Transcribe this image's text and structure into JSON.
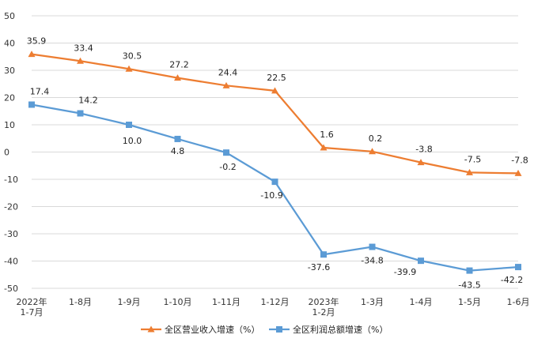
{
  "chart_data": {
    "type": "line",
    "categories": [
      "2022年\n1-7月",
      "1-8月",
      "1-9月",
      "1-10月",
      "1-11月",
      "1-12月",
      "2023年\n1-2月",
      "1-3月",
      "1-4月",
      "1-5月",
      "1-6月"
    ],
    "ylim": [
      -50,
      50
    ],
    "yticks": [
      50,
      40,
      30,
      20,
      10,
      0,
      -10,
      -20,
      -30,
      -40,
      -50
    ],
    "grid": true,
    "legend_position": "bottom",
    "series": [
      {
        "name": "全区营业收入增速（%）",
        "color": "#ED7D31",
        "marker": "triangle",
        "values": [
          35.9,
          33.4,
          30.5,
          27.2,
          24.4,
          22.5,
          1.6,
          0.2,
          -3.8,
          -7.5,
          -7.8
        ],
        "labels": [
          "35.9",
          "33.4",
          "30.5",
          "27.2",
          "24.4",
          "22.5",
          "1.6",
          "0.2",
          "-3.8",
          "-7.5",
          "-7.8"
        ]
      },
      {
        "name": "全区利润总额增速（%）",
        "color": "#5B9BD5",
        "marker": "square",
        "values": [
          17.4,
          14.2,
          10.0,
          4.8,
          -0.2,
          -10.9,
          -37.6,
          -34.8,
          -39.9,
          -43.5,
          -42.2
        ],
        "labels": [
          "17.4",
          "14.2",
          "10.0",
          "4.8",
          "-0.2",
          "-10.9",
          "-37.6",
          "-34.8",
          "-39.9",
          "-43.5",
          "-42.2"
        ]
      }
    ]
  }
}
